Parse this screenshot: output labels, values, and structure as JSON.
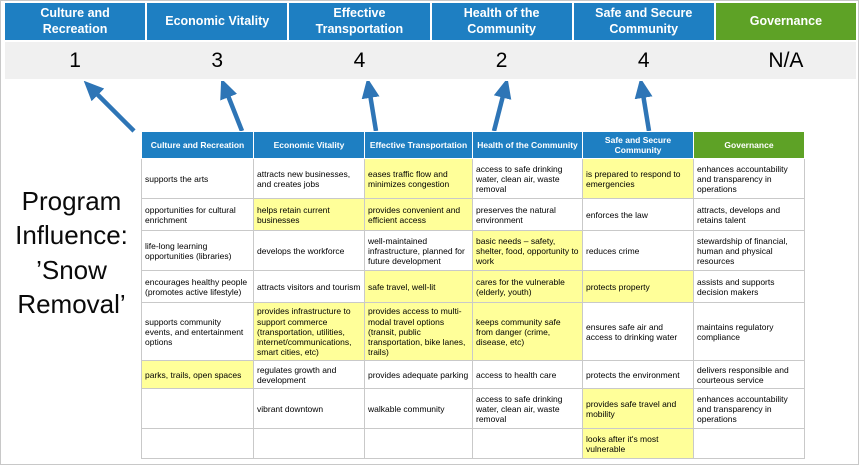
{
  "colors": {
    "header_blue": "#1E7FC2",
    "header_green": "#5EA226",
    "highlight_yellow": "#FFFF99",
    "arrow_blue": "#2E75B6",
    "score_band_bg": "#F0F0F0",
    "grid_border": "#C9C9C9"
  },
  "title": {
    "text": "Program Influence: ’Snow Removal’"
  },
  "icons": {
    "influence_arrow": "up-arrow"
  },
  "summary": {
    "columns": [
      {
        "label": "Culture and Recreation",
        "score": "1",
        "color": "blue"
      },
      {
        "label": "Economic Vitality",
        "score": "3",
        "color": "blue"
      },
      {
        "label": "Effective Transportation",
        "score": "4",
        "color": "blue"
      },
      {
        "label": "Health of the Community",
        "score": "2",
        "color": "blue"
      },
      {
        "label": "Safe and Secure Community",
        "score": "4",
        "color": "blue"
      },
      {
        "label": "Governance",
        "score": "N/A",
        "color": "green"
      }
    ]
  },
  "table": {
    "headers": [
      {
        "label": "Culture and Recreation",
        "color": "blue"
      },
      {
        "label": "Economic Vitality",
        "color": "blue"
      },
      {
        "label": "Effective Transportation",
        "color": "blue"
      },
      {
        "label": "Health of the Community",
        "color": "blue"
      },
      {
        "label": "Safe and Secure Community",
        "color": "blue"
      },
      {
        "label": "Governance",
        "color": "green"
      }
    ],
    "rows": [
      [
        {
          "t": "supports the arts",
          "hl": false
        },
        {
          "t": "attracts new businesses, and creates jobs",
          "hl": false
        },
        {
          "t": "eases traffic flow and minimizes congestion",
          "hl": true
        },
        {
          "t": "access to safe drinking water, clean air, waste removal",
          "hl": false
        },
        {
          "t": "is prepared to respond to emergencies",
          "hl": true
        },
        {
          "t": "enhances accountability and transparency in operations",
          "hl": false
        }
      ],
      [
        {
          "t": "opportunities for cultural enrichment",
          "hl": false
        },
        {
          "t": "helps retain current businesses",
          "hl": true
        },
        {
          "t": "provides convenient and efficient access",
          "hl": true
        },
        {
          "t": "preserves the natural environment",
          "hl": false
        },
        {
          "t": "enforces the law",
          "hl": false
        },
        {
          "t": "attracts, develops and retains talent",
          "hl": false
        }
      ],
      [
        {
          "t": "life-long learning opportunities (libraries)",
          "hl": false
        },
        {
          "t": "develops the workforce",
          "hl": false
        },
        {
          "t": "well-maintained infrastructure, planned for future development",
          "hl": false
        },
        {
          "t": "basic needs – safety, shelter, food, opportunity to work",
          "hl": true
        },
        {
          "t": "reduces crime",
          "hl": false
        },
        {
          "t": "stewardship of financial, human and physical resources",
          "hl": false
        }
      ],
      [
        {
          "t": "encourages healthy people (promotes active lifestyle)",
          "hl": false
        },
        {
          "t": "attracts visitors and tourism",
          "hl": false
        },
        {
          "t": "safe travel, well-lit",
          "hl": true
        },
        {
          "t": "cares for the vulnerable (elderly, youth)",
          "hl": true
        },
        {
          "t": "protects property",
          "hl": true
        },
        {
          "t": "assists and supports decision makers",
          "hl": false
        }
      ],
      [
        {
          "t": "supports community events, and entertainment options",
          "hl": false
        },
        {
          "t": "provides infrastructure to support commerce (transportation, utilities, internet/communications, smart cities, etc)",
          "hl": true
        },
        {
          "t": "provides access to multi-modal travel options (transit, public transportation, bike lanes, trails)",
          "hl": true
        },
        {
          "t": "keeps community safe from danger (crime, disease, etc)",
          "hl": true
        },
        {
          "t": "ensures safe air and access to drinking water",
          "hl": false
        },
        {
          "t": "maintains regulatory compliance",
          "hl": false
        }
      ],
      [
        {
          "t": "parks, trails, open spaces",
          "hl": true
        },
        {
          "t": "regulates growth and development",
          "hl": false
        },
        {
          "t": "provides adequate parking",
          "hl": false
        },
        {
          "t": "access to health care",
          "hl": false
        },
        {
          "t": "protects the environment",
          "hl": false
        },
        {
          "t": "delivers responsible and courteous service",
          "hl": false
        }
      ],
      [
        {
          "t": "",
          "hl": false
        },
        {
          "t": "vibrant downtown",
          "hl": false
        },
        {
          "t": "walkable community",
          "hl": false
        },
        {
          "t": "access to safe drinking water, clean air, waste removal",
          "hl": false
        },
        {
          "t": "provides safe travel and mobility",
          "hl": true
        },
        {
          "t": "enhances accountability and transparency in operations",
          "hl": false
        }
      ],
      [
        {
          "t": "",
          "hl": false
        },
        {
          "t": "",
          "hl": false
        },
        {
          "t": "",
          "hl": false
        },
        {
          "t": "",
          "hl": false
        },
        {
          "t": "looks after it's most vulnerable",
          "hl": true
        },
        {
          "t": "",
          "hl": false
        }
      ]
    ]
  }
}
